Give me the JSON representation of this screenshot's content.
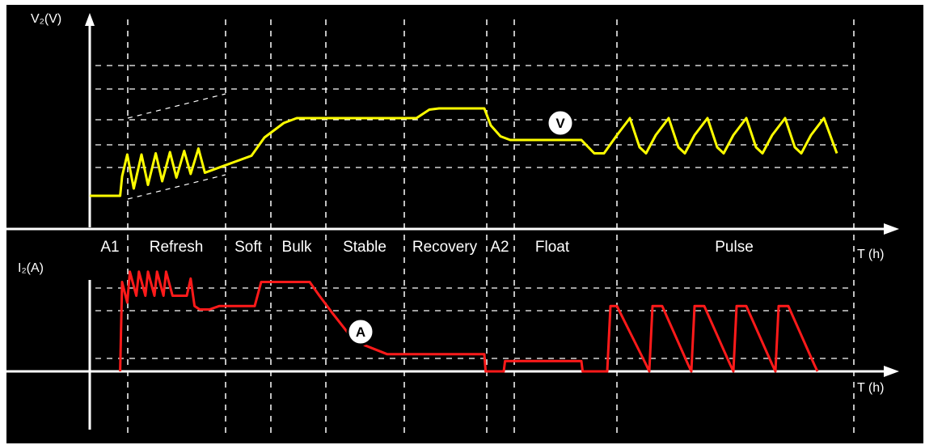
{
  "chart_data": {
    "type": "line",
    "title": "",
    "colors": {
      "voltage": "#ffff00",
      "current": "#ff1a1a",
      "grid": "#ffffff",
      "background": "#000000"
    },
    "phases": [
      "A1",
      "Refresh",
      "Soft",
      "Bulk",
      "Stable",
      "Recovery",
      "A2",
      "Float",
      "Pulse"
    ],
    "top_plot": {
      "ylabel": "V₂(V)",
      "xlabel": "T (h)",
      "marker": "V",
      "series": [
        {
          "color": "#ffff00",
          "points": [
            [
              0,
              0.3
            ],
            [
              0.47,
              0.3
            ],
            [
              0.5,
              1.1
            ],
            [
              0.58,
              2.0
            ],
            [
              0.68,
              0.6
            ],
            [
              0.8,
              2.0
            ],
            [
              0.9,
              0.75
            ],
            [
              1.02,
              2.05
            ],
            [
              1.12,
              0.9
            ],
            [
              1.24,
              2.1
            ],
            [
              1.34,
              1.05
            ],
            [
              1.46,
              2.15
            ],
            [
              1.56,
              1.2
            ],
            [
              1.68,
              2.25
            ],
            [
              1.78,
              1.25
            ],
            [
              2.5,
              1.95
            ],
            [
              2.7,
              2.7
            ],
            [
              3.0,
              3.3
            ],
            [
              3.2,
              3.5
            ],
            [
              3.6,
              3.5
            ],
            [
              4.4,
              3.5
            ],
            [
              5.05,
              3.5
            ],
            [
              5.25,
              3.85
            ],
            [
              5.4,
              3.9
            ],
            [
              6.1,
              3.9
            ],
            [
              6.2,
              3.2
            ],
            [
              6.35,
              2.75
            ],
            [
              6.5,
              2.6
            ],
            [
              7.6,
              2.6
            ],
            [
              7.8,
              2.05
            ],
            [
              7.95,
              2.05
            ],
            [
              8.15,
              2.8
            ],
            [
              8.35,
              3.5
            ],
            [
              8.5,
              2.3
            ],
            [
              8.6,
              2.05
            ],
            [
              8.75,
              2.8
            ],
            [
              8.95,
              3.5
            ],
            [
              9.1,
              2.3
            ],
            [
              9.2,
              2.05
            ],
            [
              9.35,
              2.8
            ],
            [
              9.55,
              3.5
            ],
            [
              9.7,
              2.3
            ],
            [
              9.8,
              2.05
            ],
            [
              9.95,
              2.8
            ],
            [
              10.15,
              3.5
            ],
            [
              10.3,
              2.3
            ],
            [
              10.4,
              2.05
            ],
            [
              10.55,
              2.8
            ],
            [
              10.75,
              3.5
            ],
            [
              10.9,
              2.3
            ],
            [
              11.0,
              2.05
            ],
            [
              11.15,
              2.8
            ],
            [
              11.35,
              3.5
            ],
            [
              11.55,
              2.05
            ]
          ]
        }
      ]
    },
    "bottom_plot": {
      "ylabel": "I₂(A)",
      "xlabel": "T (h)",
      "marker": "A",
      "series": [
        {
          "color": "#ff1a1a",
          "points": [
            [
              0.47,
              0
            ],
            [
              0.5,
              1.3
            ],
            [
              0.58,
              1.0
            ],
            [
              0.62,
              1.45
            ],
            [
              0.72,
              1.1
            ],
            [
              0.76,
              1.45
            ],
            [
              0.86,
              1.1
            ],
            [
              0.9,
              1.45
            ],
            [
              1.0,
              1.1
            ],
            [
              1.04,
              1.45
            ],
            [
              1.14,
              1.1
            ],
            [
              1.18,
              1.45
            ],
            [
              1.28,
              1.1
            ],
            [
              1.5,
              1.1
            ],
            [
              1.56,
              1.35
            ],
            [
              1.62,
              0.95
            ],
            [
              1.7,
              0.9
            ],
            [
              1.85,
              0.9
            ],
            [
              2.0,
              0.95
            ],
            [
              2.3,
              0.95
            ],
            [
              2.55,
              0.95
            ],
            [
              2.65,
              1.3
            ],
            [
              3.4,
              1.3
            ],
            [
              3.55,
              1.1
            ],
            [
              3.75,
              0.85
            ],
            [
              4.0,
              0.55
            ],
            [
              4.25,
              0.38
            ],
            [
              4.6,
              0.25
            ],
            [
              5.5,
              0.25
            ],
            [
              6.1,
              0.25
            ],
            [
              6.12,
              0
            ],
            [
              6.4,
              0
            ],
            [
              6.42,
              0.15
            ],
            [
              7.6,
              0.15
            ],
            [
              7.62,
              0
            ],
            [
              8.0,
              0
            ],
            [
              8.05,
              0.95
            ],
            [
              8.15,
              0.95
            ],
            [
              8.6,
              0.1
            ],
            [
              8.65,
              0
            ],
            [
              8.7,
              0.95
            ],
            [
              8.85,
              0.95
            ],
            [
              9.25,
              0.1
            ],
            [
              9.3,
              0
            ],
            [
              9.35,
              0.95
            ],
            [
              9.5,
              0.95
            ],
            [
              9.9,
              0.1
            ],
            [
              9.95,
              0
            ],
            [
              10.0,
              0.95
            ],
            [
              10.15,
              0.95
            ],
            [
              10.55,
              0.1
            ],
            [
              10.6,
              0
            ],
            [
              10.65,
              0.95
            ],
            [
              10.8,
              0.95
            ],
            [
              11.2,
              0.1
            ],
            [
              11.25,
              0
            ]
          ]
        }
      ]
    }
  }
}
